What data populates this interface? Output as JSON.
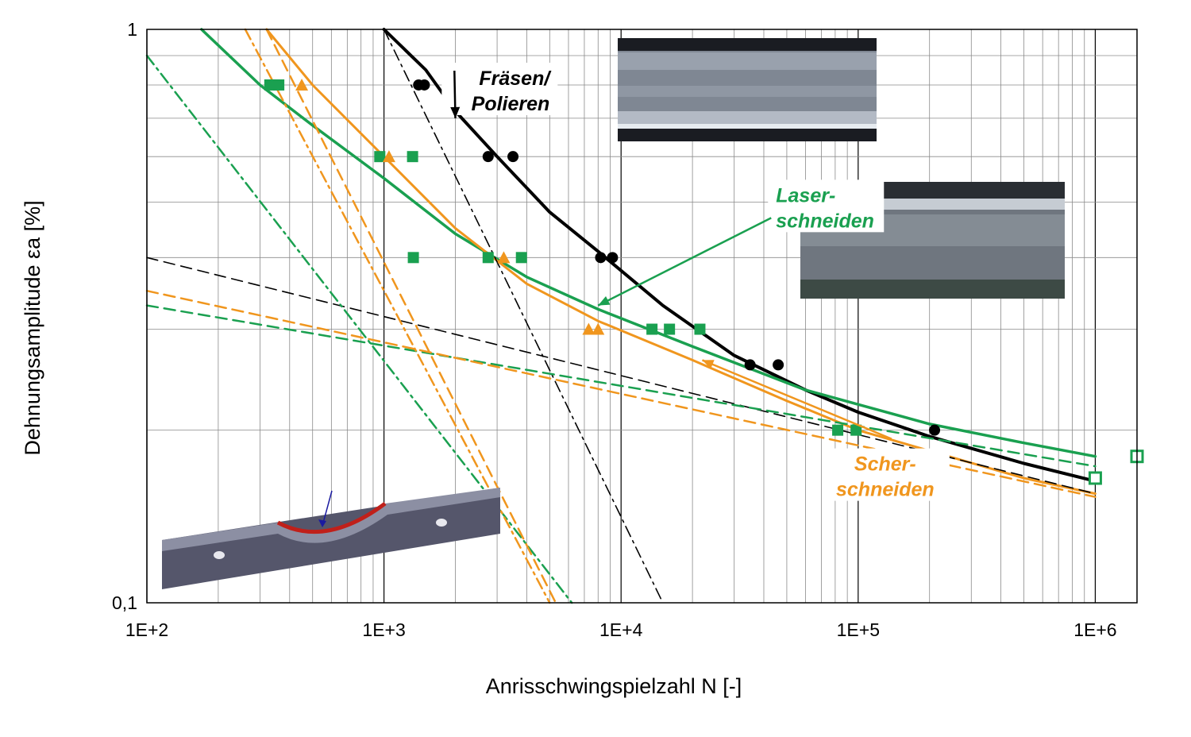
{
  "chart_data": {
    "type": "scatter",
    "x_scale": "log",
    "y_scale": "log",
    "xlim": [
      100,
      1500000
    ],
    "ylim": [
      0.1,
      1
    ],
    "xlabel": "Anrisschwingspielzahl N [-]",
    "ylabel": "Dehnungsamplitude εa [%]",
    "x_ticks": [
      {
        "value": 100,
        "label": "1E+2"
      },
      {
        "value": 1000,
        "label": "1E+3"
      },
      {
        "value": 10000,
        "label": "1E+4"
      },
      {
        "value": 100000,
        "label": "1E+5"
      },
      {
        "value": 1000000,
        "label": "1E+6"
      }
    ],
    "y_ticks": [
      {
        "value": 0.1,
        "label": "0,1"
      },
      {
        "value": 1,
        "label": "1"
      }
    ],
    "grid": true,
    "annotations": [
      {
        "id": "fraesen",
        "lines": [
          "Fräsen/",
          "Polieren"
        ],
        "color": "#000000",
        "x": 5000,
        "y": 0.8,
        "arrow_to": [
          2000,
          0.7
        ]
      },
      {
        "id": "laser",
        "lines": [
          "Laser-",
          "schneiden"
        ],
        "color": "#1aa050",
        "x": 45000,
        "y": 0.5,
        "arrow_to": [
          8000,
          0.33
        ]
      },
      {
        "id": "scher",
        "lines": [
          "Scher-",
          "schneiden"
        ],
        "color": "#f0961e",
        "x": 130000,
        "y": 0.17,
        "arrow_to": [
          22000,
          0.265
        ]
      }
    ],
    "series": [
      {
        "id": "fraesen-points",
        "kind": "points",
        "marker": "circle",
        "color": "#000000",
        "points": [
          [
            1400,
            0.8
          ],
          [
            1480,
            0.8
          ],
          [
            2750,
            0.6
          ],
          [
            3500,
            0.6
          ],
          [
            8200,
            0.4
          ],
          [
            9200,
            0.4
          ],
          [
            35000,
            0.26
          ],
          [
            46000,
            0.26
          ],
          [
            210000,
            0.2
          ],
          [
            1000000,
            0.165
          ]
        ]
      },
      {
        "id": "laser-points",
        "kind": "points",
        "marker": "square",
        "color": "#1aa050",
        "points": [
          [
            330,
            0.8
          ],
          [
            360,
            0.8
          ],
          [
            960,
            0.6
          ],
          [
            1320,
            0.6
          ],
          [
            1330,
            0.4
          ],
          [
            2750,
            0.4
          ],
          [
            3800,
            0.4
          ],
          [
            13500,
            0.3
          ],
          [
            16000,
            0.3
          ],
          [
            21500,
            0.3
          ],
          [
            82000,
            0.2
          ],
          [
            98000,
            0.2
          ],
          [
            160000,
            0.18
          ]
        ]
      },
      {
        "id": "laser-runouts",
        "kind": "points",
        "marker": "square-open",
        "color": "#1aa050",
        "points": [
          [
            1000000,
            0.165
          ],
          [
            1500000,
            0.18
          ]
        ]
      },
      {
        "id": "scher-points",
        "kind": "points",
        "marker": "triangle",
        "color": "#f0961e",
        "points": [
          [
            450,
            0.8
          ],
          [
            1050,
            0.6
          ],
          [
            3200,
            0.4
          ],
          [
            7300,
            0.3
          ],
          [
            8000,
            0.3
          ]
        ]
      },
      {
        "id": "fraesen-curve",
        "kind": "line",
        "style": "solid",
        "width": 4,
        "color": "#000000",
        "points": [
          [
            1000,
            1.0
          ],
          [
            1500,
            0.85
          ],
          [
            2000,
            0.72
          ],
          [
            3000,
            0.6
          ],
          [
            5000,
            0.48
          ],
          [
            8000,
            0.41
          ],
          [
            15000,
            0.33
          ],
          [
            30000,
            0.27
          ],
          [
            60000,
            0.235
          ],
          [
            100000,
            0.215
          ],
          [
            200000,
            0.195
          ],
          [
            500000,
            0.175
          ],
          [
            1000000,
            0.163
          ]
        ]
      },
      {
        "id": "laser-curve",
        "kind": "line",
        "style": "solid",
        "width": 3.5,
        "color": "#1aa050",
        "points": [
          [
            170,
            1.0
          ],
          [
            300,
            0.8
          ],
          [
            500,
            0.68
          ],
          [
            1000,
            0.55
          ],
          [
            2000,
            0.44
          ],
          [
            4000,
            0.37
          ],
          [
            8000,
            0.325
          ],
          [
            20000,
            0.28
          ],
          [
            60000,
            0.235
          ],
          [
            200000,
            0.205
          ],
          [
            500000,
            0.19
          ],
          [
            1000000,
            0.18
          ]
        ]
      },
      {
        "id": "scher-curve",
        "kind": "line",
        "style": "solid",
        "width": 3,
        "color": "#f0961e",
        "points": [
          [
            320,
            1.0
          ],
          [
            500,
            0.8
          ],
          [
            1000,
            0.6
          ],
          [
            2000,
            0.45
          ],
          [
            4000,
            0.36
          ],
          [
            8000,
            0.31
          ],
          [
            20000,
            0.265
          ],
          [
            50000,
            0.225
          ],
          [
            100000,
            0.2
          ],
          [
            500000,
            0.165
          ],
          [
            1000000,
            0.155
          ]
        ]
      },
      {
        "id": "black-dashed",
        "kind": "line",
        "style": "dash",
        "width": 1.6,
        "color": "#000000",
        "points": [
          [
            100,
            0.4
          ],
          [
            1000000,
            0.155
          ]
        ]
      },
      {
        "id": "black-dashdot",
        "kind": "line",
        "style": "dashdot",
        "width": 1.6,
        "color": "#000000",
        "points": [
          [
            1000,
            1.0
          ],
          [
            15000,
            0.1
          ]
        ]
      },
      {
        "id": "green-dashed",
        "kind": "line",
        "style": "dash",
        "width": 2.5,
        "color": "#1aa050",
        "points": [
          [
            100,
            0.33
          ],
          [
            1000000,
            0.173
          ]
        ]
      },
      {
        "id": "orange-dashed",
        "kind": "line",
        "style": "dash",
        "width": 2.5,
        "color": "#f0961e",
        "points": [
          [
            100,
            0.35
          ],
          [
            1000000,
            0.153
          ]
        ]
      },
      {
        "id": "green-dashdot",
        "kind": "line",
        "style": "dashdot",
        "width": 2.5,
        "color": "#1aa050",
        "points": [
          [
            100,
            0.9
          ],
          [
            6200,
            0.1
          ]
        ]
      },
      {
        "id": "orange-dashdot",
        "kind": "line",
        "style": "dashdot",
        "width": 2.5,
        "color": "#f0961e",
        "points": [
          [
            260,
            1.0
          ],
          [
            5000,
            0.1
          ]
        ]
      },
      {
        "id": "orange-dashed-steep",
        "kind": "line",
        "style": "dash",
        "width": 2.5,
        "color": "#f0961e",
        "points": [
          [
            320,
            1.0
          ],
          [
            5300,
            0.1
          ]
        ]
      }
    ]
  }
}
